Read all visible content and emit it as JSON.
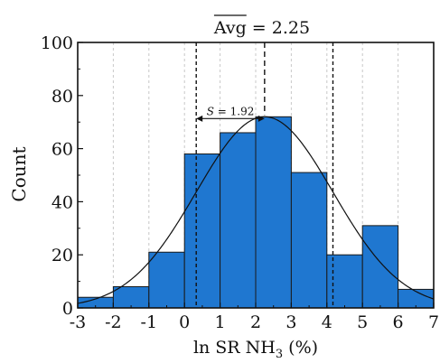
{
  "chart_data": {
    "type": "bar",
    "title_overline": "Avg",
    "title_rest": " = 2.25",
    "annotation_prefix": "S",
    "annotation_rest": " = 1.92",
    "xlabel_pre": "ln SR NH",
    "xlabel_sub": "3",
    "xlabel_post": " (%)",
    "ylabel": "Count",
    "xlim": [
      -3,
      7
    ],
    "ylim": [
      0,
      100
    ],
    "xticks": [
      "-3",
      "-2",
      "-1",
      "0",
      "1",
      "2",
      "3",
      "4",
      "5",
      "6",
      "7"
    ],
    "yticks": [
      "0",
      "20",
      "40",
      "60",
      "80",
      "100"
    ],
    "bins": [
      {
        "start": -3,
        "end": -2,
        "value": 4
      },
      {
        "start": -2,
        "end": -1,
        "value": 8
      },
      {
        "start": -1,
        "end": 0,
        "value": 21
      },
      {
        "start": 0,
        "end": 1,
        "value": 58
      },
      {
        "start": 1,
        "end": 2,
        "value": 66
      },
      {
        "start": 2,
        "end": 3,
        "value": 72
      },
      {
        "start": 3,
        "end": 4,
        "value": 51
      },
      {
        "start": 4,
        "end": 5,
        "value": 20
      },
      {
        "start": 5,
        "end": 6,
        "value": 31
      },
      {
        "start": 6,
        "end": 7,
        "value": 7
      }
    ],
    "fit": {
      "type": "gaussian",
      "mean": 2.25,
      "sd": 1.92,
      "peak": 72
    },
    "mean_line": 2.25,
    "sd_lines": [
      0.33,
      4.17
    ],
    "grid": "vertical dashed",
    "colors": {
      "bar": "#1f77d0",
      "bar_edge": "#1a1a1a",
      "fit": "#111111",
      "grid": "#c8c8c8"
    }
  }
}
